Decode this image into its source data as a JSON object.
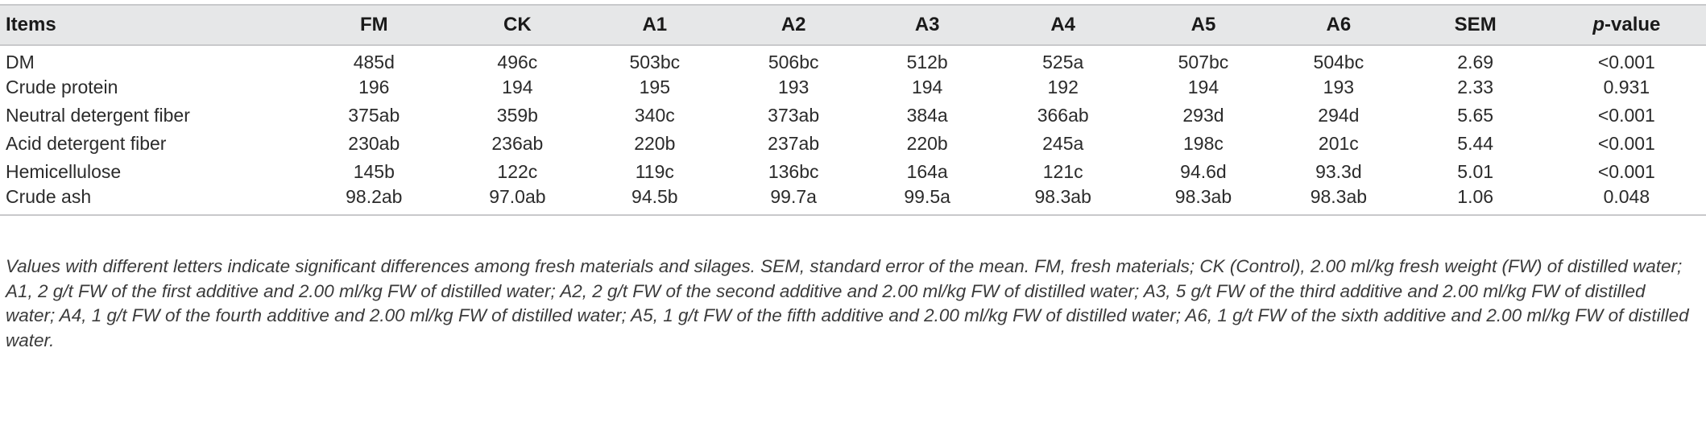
{
  "table": {
    "headers": [
      "Items",
      "FM",
      "CK",
      "A1",
      "A2",
      "A3",
      "A4",
      "A5",
      "A6",
      "SEM"
    ],
    "last_header": {
      "italic_part": "p",
      "rest": "-value"
    },
    "rows": [
      [
        "DM",
        "485d",
        "496c",
        "503bc",
        "506bc",
        "512b",
        "525a",
        "507bc",
        "504bc",
        "2.69",
        "<0.001"
      ],
      [
        "Crude protein",
        "196",
        "194",
        "195",
        "193",
        "194",
        "192",
        "194",
        "193",
        "2.33",
        "0.931"
      ],
      [
        "Neutral detergent fiber",
        "375ab",
        "359b",
        "340c",
        "373ab",
        "384a",
        "366ab",
        "293d",
        "294d",
        "5.65",
        "<0.001"
      ],
      [
        "Acid detergent fiber",
        "230ab",
        "236ab",
        "220b",
        "237ab",
        "220b",
        "245a",
        "198c",
        "201c",
        "5.44",
        "<0.001"
      ],
      [
        "Hemicellulose",
        "145b",
        "122c",
        "119c",
        "136bc",
        "164a",
        "121c",
        "94.6d",
        "93.3d",
        "5.01",
        "<0.001"
      ],
      [
        "Crude ash",
        "98.2ab",
        "97.0ab",
        "94.5b",
        "99.7a",
        "99.5a",
        "98.3ab",
        "98.3ab",
        "98.3ab",
        "1.06",
        "0.048"
      ]
    ]
  },
  "footnote": "Values with different letters indicate significant differences among fresh materials and silages. SEM, standard error of the mean. FM, fresh materials; CK (Control), 2.00 ml/kg fresh weight (FW) of distilled water; A1, 2 g/t FW of the first additive and 2.00 ml/kg FW of distilled water; A2, 2 g/t FW of the second additive and 2.00 ml/kg FW of distilled water; A3, 5 g/t FW of the third additive and 2.00 ml/kg FW of distilled water; A4, 1 g/t FW of the fourth additive and 2.00 ml/kg FW of distilled water; A5, 1 g/t FW of the fifth additive and 2.00 ml/kg FW of distilled water; A6, 1 g/t FW of the sixth additive and 2.00 ml/kg FW of distilled water.",
  "colors": {
    "header_background": "#e6e7e8",
    "rule": "#c8c9cb",
    "text": "#2b2b2b"
  }
}
